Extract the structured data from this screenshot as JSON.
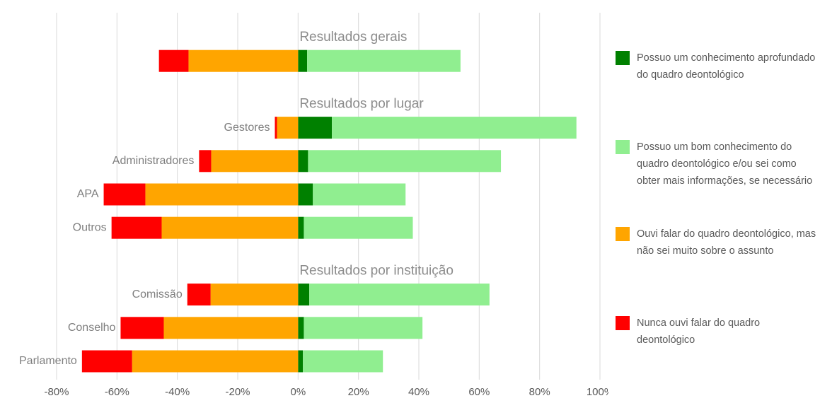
{
  "chart_data": {
    "type": "diverging-stacked-bar",
    "groups": [
      {
        "title": "Resultados gerais",
        "categories": [
          null
        ]
      },
      {
        "title": "Resultados por lugar",
        "categories": [
          "Gestores",
          "Administradores",
          "APA",
          "Outros"
        ]
      },
      {
        "title": "Resultados por instituição",
        "categories": [
          "Comissão",
          "Conselho",
          "Parlamento"
        ]
      }
    ],
    "series": [
      {
        "name": "Possuo um conhecimento aprofundado do quadro deontológico",
        "color": "#008000",
        "values": [
          3.0,
          11.2,
          3.3,
          4.9,
          1.9,
          3.7,
          1.9,
          1.6
        ]
      },
      {
        "name": "Possuo um bom conhecimento do quadro deontológico e/ou sei como obter mais informações, se necessário",
        "color": "#90ee90",
        "values": [
          50.8,
          81.0,
          63.9,
          30.7,
          36.1,
          59.7,
          39.3,
          26.5
        ]
      },
      {
        "name": "Ouvi falar do quadro deontológico, mas não sei muito sobre o assunto",
        "color": "#ffa500",
        "values": [
          -36.3,
          -7.0,
          -28.8,
          -50.6,
          -45.2,
          -29.0,
          -44.5,
          -55.0
        ]
      },
      {
        "name": "Nunca ouvi falar do quadro deontológico",
        "color": "#ff0000",
        "values": [
          -9.8,
          -0.7,
          -4.0,
          -13.8,
          -16.6,
          -7.7,
          -14.3,
          -16.6
        ]
      }
    ],
    "xlim": [
      -80,
      100
    ],
    "xticks": [
      {
        "value": -80,
        "label": "-80%"
      },
      {
        "value": -60,
        "label": "-60%"
      },
      {
        "value": -40,
        "label": "-40%"
      },
      {
        "value": -20,
        "label": "-20%"
      },
      {
        "value": 0,
        "label": "0%"
      },
      {
        "value": 20,
        "label": "20%"
      },
      {
        "value": 40,
        "label": "40%"
      },
      {
        "value": 60,
        "label": "60%"
      },
      {
        "value": 80,
        "label": "80%"
      },
      {
        "value": 100,
        "label": "100%"
      }
    ],
    "grid": true,
    "legend": "right"
  }
}
